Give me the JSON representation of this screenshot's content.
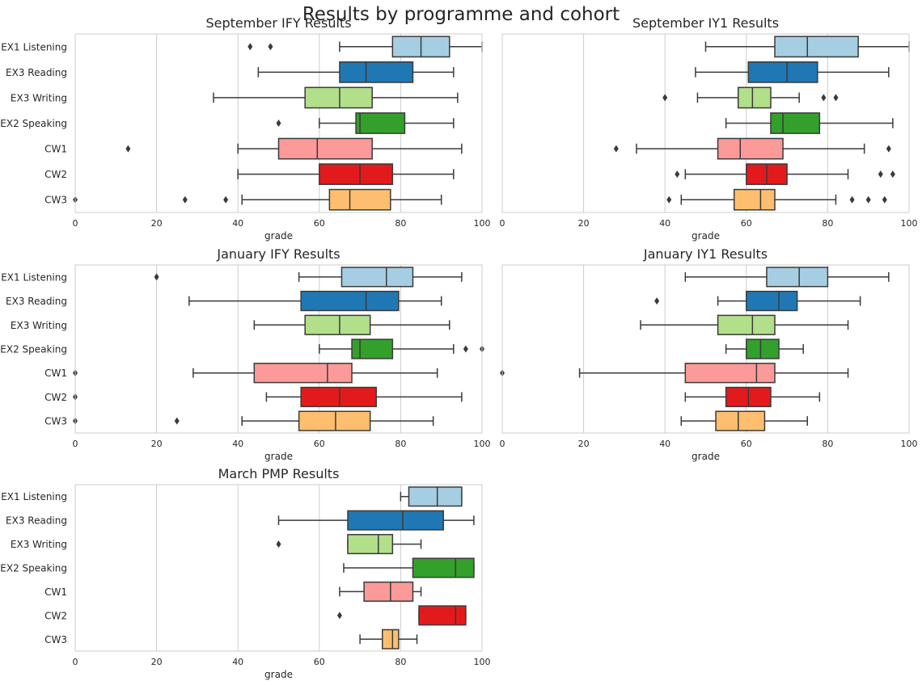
{
  "suptitle": "Results by programme and cohort",
  "colors": {
    "EX1 Listening": "#a6cee3",
    "EX3 Reading": "#1f78b4",
    "EX3 Writing": "#b2df8a",
    "EX2 Speaking": "#33a02c",
    "CW1": "#fb9a99",
    "CW2": "#e31a1c",
    "CW3": "#fdbf6f",
    "edge": "#3a3a3a",
    "grid": "#cccccc",
    "axis": "#cccccc"
  },
  "chart_data": [
    {
      "type": "box",
      "title": "September IFY Results",
      "xlabel": "grade",
      "xlim": [
        0,
        100
      ],
      "xticks": [
        0,
        20,
        40,
        60,
        80,
        100
      ],
      "categories": [
        "EX1 Listening",
        "EX3 Reading",
        "EX3 Writing",
        "EX2 Speaking",
        "CW1",
        "CW2",
        "CW3"
      ],
      "show_ytick_labels": true,
      "boxes": [
        {
          "whislo": 65,
          "q1": 78,
          "med": 85,
          "q3": 92,
          "whishi": 100,
          "fliers": [
            43,
            48
          ]
        },
        {
          "whislo": 45,
          "q1": 65,
          "med": 71.5,
          "q3": 83,
          "whishi": 93,
          "fliers": []
        },
        {
          "whislo": 34,
          "q1": 56.5,
          "med": 65,
          "q3": 73,
          "whishi": 94,
          "fliers": []
        },
        {
          "whislo": 60,
          "q1": 69,
          "med": 70,
          "q3": 81,
          "whishi": 93,
          "fliers": [
            50
          ]
        },
        {
          "whislo": 40,
          "q1": 50,
          "med": 59.5,
          "q3": 73,
          "whishi": 95,
          "fliers": [
            13
          ]
        },
        {
          "whislo": 40,
          "q1": 60,
          "med": 70,
          "q3": 78,
          "whishi": 93,
          "fliers": []
        },
        {
          "whislo": 41,
          "q1": 62.5,
          "med": 67.5,
          "q3": 77.5,
          "whishi": 90,
          "fliers": [
            0,
            27,
            37
          ]
        }
      ]
    },
    {
      "type": "box",
      "title": "September IY1 Results",
      "xlabel": "grade",
      "xlim": [
        0,
        100
      ],
      "xticks": [
        0,
        20,
        40,
        60,
        80,
        100
      ],
      "categories": [
        "EX1 Listening",
        "EX3 Reading",
        "EX3 Writing",
        "EX2 Speaking",
        "CW1",
        "CW2",
        "CW3"
      ],
      "show_ytick_labels": false,
      "boxes": [
        {
          "whislo": 50,
          "q1": 67,
          "med": 75,
          "q3": 87.5,
          "whishi": 100,
          "fliers": []
        },
        {
          "whislo": 47.5,
          "q1": 60.5,
          "med": 70,
          "q3": 77.5,
          "whishi": 95,
          "fliers": []
        },
        {
          "whislo": 48,
          "q1": 58,
          "med": 61.5,
          "q3": 66,
          "whishi": 73,
          "fliers": [
            40,
            79,
            82
          ]
        },
        {
          "whislo": 55,
          "q1": 66,
          "med": 69,
          "q3": 78,
          "whishi": 96,
          "fliers": []
        },
        {
          "whislo": 33,
          "q1": 53,
          "med": 58.5,
          "q3": 69,
          "whishi": 89,
          "fliers": [
            28,
            95
          ]
        },
        {
          "whislo": 45,
          "q1": 60,
          "med": 65,
          "q3": 70,
          "whishi": 85,
          "fliers": [
            43,
            93,
            96
          ]
        },
        {
          "whislo": 44,
          "q1": 57,
          "med": 63.5,
          "q3": 67,
          "whishi": 82,
          "fliers": [
            41,
            86,
            90,
            94
          ]
        }
      ]
    },
    {
      "type": "box",
      "title": "January IFY Results",
      "xlabel": "grade",
      "xlim": [
        0,
        100
      ],
      "xticks": [
        0,
        20,
        40,
        60,
        80,
        100
      ],
      "categories": [
        "EX1 Listening",
        "EX3 Reading",
        "EX3 Writing",
        "EX2 Speaking",
        "CW1",
        "CW2",
        "CW3"
      ],
      "show_ytick_labels": true,
      "boxes": [
        {
          "whislo": 55,
          "q1": 65.5,
          "med": 76.5,
          "q3": 83,
          "whishi": 95,
          "fliers": [
            20
          ]
        },
        {
          "whislo": 28,
          "q1": 55.5,
          "med": 71.5,
          "q3": 79.5,
          "whishi": 90,
          "fliers": []
        },
        {
          "whislo": 44,
          "q1": 56.5,
          "med": 65,
          "q3": 72.5,
          "whishi": 92,
          "fliers": []
        },
        {
          "whislo": 60,
          "q1": 68,
          "med": 70,
          "q3": 78,
          "whishi": 93,
          "fliers": [
            96,
            100
          ]
        },
        {
          "whislo": 29,
          "q1": 44,
          "med": 62,
          "q3": 68,
          "whishi": 89,
          "fliers": [
            0
          ]
        },
        {
          "whislo": 47,
          "q1": 55.5,
          "med": 65,
          "q3": 74,
          "whishi": 95,
          "fliers": [
            0
          ]
        },
        {
          "whislo": 41,
          "q1": 55,
          "med": 64,
          "q3": 72.5,
          "whishi": 88,
          "fliers": [
            0,
            25
          ]
        }
      ]
    },
    {
      "type": "box",
      "title": "January IY1 Results",
      "xlabel": "grade",
      "xlim": [
        0,
        100
      ],
      "xticks": [
        0,
        20,
        40,
        60,
        80,
        100
      ],
      "categories": [
        "EX1 Listening",
        "EX3 Reading",
        "EX3 Writing",
        "EX2 Speaking",
        "CW1",
        "CW2",
        "CW3"
      ],
      "show_ytick_labels": false,
      "boxes": [
        {
          "whislo": 45,
          "q1": 65,
          "med": 73,
          "q3": 80,
          "whishi": 95,
          "fliers": []
        },
        {
          "whislo": 53,
          "q1": 60,
          "med": 68,
          "q3": 72.5,
          "whishi": 88,
          "fliers": [
            38
          ]
        },
        {
          "whislo": 34,
          "q1": 53,
          "med": 61.5,
          "q3": 67,
          "whishi": 85,
          "fliers": []
        },
        {
          "whislo": 55,
          "q1": 60,
          "med": 63.5,
          "q3": 68,
          "whishi": 74,
          "fliers": []
        },
        {
          "whislo": 19,
          "q1": 45,
          "med": 62.5,
          "q3": 67,
          "whishi": 85,
          "fliers": [
            0
          ]
        },
        {
          "whislo": 45,
          "q1": 55,
          "med": 60.5,
          "q3": 66,
          "whishi": 78,
          "fliers": []
        },
        {
          "whislo": 44,
          "q1": 52.5,
          "med": 58,
          "q3": 64.5,
          "whishi": 75,
          "fliers": []
        }
      ]
    },
    {
      "type": "box",
      "title": "March PMP Results",
      "xlabel": "grade",
      "xlim": [
        0,
        100
      ],
      "xticks": [
        0,
        20,
        40,
        60,
        80,
        100
      ],
      "categories": [
        "EX1 Listening",
        "EX3 Reading",
        "EX3 Writing",
        "EX2 Speaking",
        "CW1",
        "CW2",
        "CW3"
      ],
      "show_ytick_labels": true,
      "boxes": [
        {
          "whislo": 80,
          "q1": 82,
          "med": 89,
          "q3": 95,
          "whishi": 95,
          "fliers": []
        },
        {
          "whislo": 50,
          "q1": 67,
          "med": 80.5,
          "q3": 90.5,
          "whishi": 98,
          "fliers": []
        },
        {
          "whislo": 67,
          "q1": 67,
          "med": 74.5,
          "q3": 78,
          "whishi": 85,
          "fliers": [
            50
          ]
        },
        {
          "whislo": 66,
          "q1": 83,
          "med": 93.5,
          "q3": 98,
          "whishi": 98,
          "fliers": []
        },
        {
          "whislo": 65,
          "q1": 71,
          "med": 77.5,
          "q3": 83,
          "whishi": 85,
          "fliers": []
        },
        {
          "whislo": 84.5,
          "q1": 84.5,
          "med": 93.5,
          "q3": 96,
          "whishi": 96,
          "fliers": [
            65
          ]
        },
        {
          "whislo": 70,
          "q1": 75.5,
          "med": 78,
          "q3": 79.5,
          "whishi": 84,
          "fliers": []
        }
      ]
    }
  ]
}
